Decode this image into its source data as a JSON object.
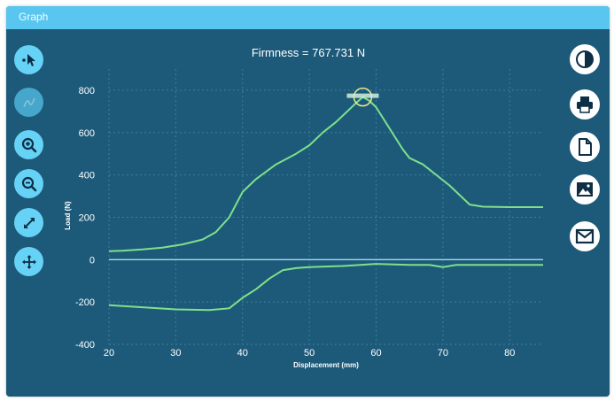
{
  "window": {
    "title": "Graph"
  },
  "toolbar_left": [
    {
      "name": "pointer-tool-button",
      "icon": "cursor-move-icon",
      "enabled": true
    },
    {
      "name": "curve-tool-button",
      "icon": "curve-icon",
      "enabled": false
    },
    {
      "name": "zoom-in-button",
      "icon": "zoom-in-icon",
      "enabled": true
    },
    {
      "name": "zoom-out-button",
      "icon": "zoom-out-icon",
      "enabled": true
    },
    {
      "name": "fit-button",
      "icon": "diagonal-arrows-icon",
      "enabled": true
    },
    {
      "name": "pan-button",
      "icon": "move-arrows-icon",
      "enabled": true
    }
  ],
  "toolbar_right": [
    {
      "name": "contrast-button",
      "icon": "contrast-icon"
    },
    {
      "name": "print-button",
      "icon": "printer-icon"
    },
    {
      "name": "export-document-button",
      "icon": "document-icon"
    },
    {
      "name": "export-image-button",
      "icon": "image-icon"
    },
    {
      "name": "email-button",
      "icon": "mail-icon"
    }
  ],
  "colors": {
    "window_bg": "#1d5a7a",
    "title_bar": "#58c6ef",
    "curve": "#7fe08a",
    "zero_line": "#a8d8e8",
    "marker": "#f0e68c",
    "text": "#ffffff"
  },
  "chart_data": {
    "type": "line",
    "title": "Firmness = 767.731 N",
    "xlabel": "Displacement (mm)",
    "ylabel": "Load (N)",
    "xlim": [
      20,
      85
    ],
    "ylim": [
      -400,
      900
    ],
    "xticks": [
      20,
      30,
      40,
      50,
      60,
      70,
      80
    ],
    "yticks": [
      800,
      600,
      400,
      200,
      0,
      -200,
      -400
    ],
    "grid": true,
    "series": [
      {
        "x": [
          20,
          22,
          25,
          28,
          31,
          34,
          36,
          38,
          40,
          42,
          45,
          48,
          50,
          52,
          54,
          56,
          57,
          58,
          59,
          60,
          62,
          64,
          65,
          67,
          69,
          71,
          73,
          74,
          76,
          80,
          85
        ],
        "y": [
          40,
          42,
          48,
          57,
          72,
          95,
          130,
          200,
          320,
          380,
          450,
          500,
          540,
          600,
          650,
          710,
          740,
          767.731,
          750,
          720,
          620,
          520,
          480,
          450,
          400,
          350,
          290,
          260,
          250,
          248,
          248
        ]
      },
      {
        "x": [
          20,
          25,
          30,
          35,
          38,
          40,
          42,
          44,
          46,
          48,
          50,
          55,
          60,
          65,
          68,
          70,
          72,
          75,
          80,
          85
        ],
        "y": [
          -215,
          -225,
          -235,
          -238,
          -230,
          -180,
          -140,
          -90,
          -50,
          -40,
          -35,
          -30,
          -20,
          -25,
          -25,
          -35,
          -25,
          -25,
          -25,
          -25
        ]
      },
      {
        "x": [
          20,
          85
        ],
        "y": [
          0,
          0
        ]
      }
    ],
    "peak": {
      "x": 58,
      "y": 767.731
    }
  }
}
